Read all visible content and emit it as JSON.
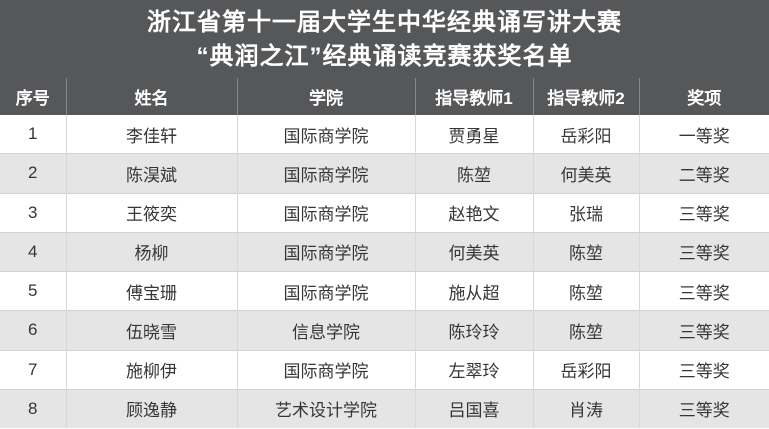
{
  "title": {
    "line1": "浙江省第十一届大学生中华经典诵写讲大赛",
    "line2": "“典润之江”经典诵读竞赛获奖名单"
  },
  "table": {
    "columns": [
      "序号",
      "姓名",
      "学院",
      "指导教师1",
      "指导教师2",
      "奖项"
    ],
    "rows": [
      [
        "1",
        "李佳轩",
        "国际商学院",
        "贾勇星",
        "岳彩阳",
        "一等奖"
      ],
      [
        "2",
        "陈淏斌",
        "国际商学院",
        "陈堃",
        "何美英",
        "二等奖"
      ],
      [
        "3",
        "王筱奕",
        "国际商学院",
        "赵艳文",
        "张瑞",
        "三等奖"
      ],
      [
        "4",
        "杨柳",
        "国际商学院",
        "何美英",
        "陈堃",
        "三等奖"
      ],
      [
        "5",
        "傅宝珊",
        "国际商学院",
        "施从超",
        "陈堃",
        "三等奖"
      ],
      [
        "6",
        "伍晓雪",
        "信息学院",
        "陈玲玲",
        "陈堃",
        "三等奖"
      ],
      [
        "7",
        "施柳伊",
        "国际商学院",
        "左翠玲",
        "岳彩阳",
        "三等奖"
      ],
      [
        "8",
        "顾逸静",
        "艺术设计学院",
        "吕国喜",
        "肖涛",
        "三等奖"
      ]
    ]
  },
  "colors": {
    "header_bg": "#565759",
    "header_text": "#ffffff",
    "header_divider": "#85868a",
    "row_bg": "#ffffff",
    "row_alt_bg": "#e5e5e6",
    "body_text": "#363636",
    "cell_divider": "#d8d8da"
  }
}
